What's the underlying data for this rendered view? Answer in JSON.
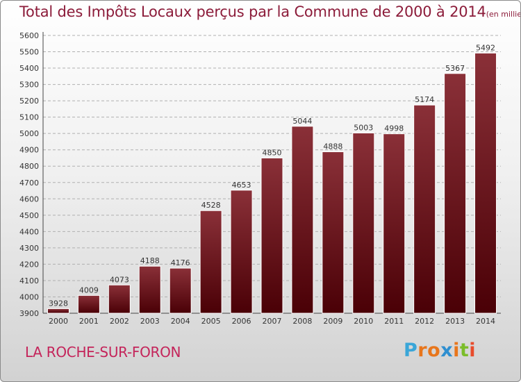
{
  "header": {
    "title": "Total des Impôts Locaux perçus par la Commune de 2000 à 2014",
    "unit": "(en milliers d'€)"
  },
  "footer": {
    "commune": "LA ROCHE-SUR-FORON",
    "logo_letters": [
      "P",
      "r",
      "o",
      "x",
      "i",
      "t",
      "i"
    ],
    "logo_colors": [
      "#3aa6d8",
      "#e8761c",
      "#e8761c",
      "#2f8fd0",
      "#e8761c",
      "#7bbd2a",
      "#e84c2c"
    ]
  },
  "chart_data": {
    "type": "bar",
    "title": "Total des Impôts Locaux perçus par la Commune de 2000 à 2014",
    "xlabel": "",
    "ylabel": "(en milliers d'€)",
    "categories": [
      "2000",
      "2001",
      "2002",
      "2003",
      "2004",
      "2005",
      "2006",
      "2007",
      "2008",
      "2009",
      "2010",
      "2011",
      "2012",
      "2013",
      "2014"
    ],
    "values": [
      3928,
      4009,
      4073,
      4188,
      4176,
      4528,
      4653,
      4850,
      5044,
      4888,
      5003,
      4998,
      5174,
      5367,
      5492
    ],
    "ylim": [
      3900,
      5600
    ],
    "yticks": [
      3900,
      4000,
      4100,
      4200,
      4300,
      4400,
      4500,
      4600,
      4700,
      4800,
      4900,
      5000,
      5100,
      5200,
      5300,
      5400,
      5500,
      5600
    ],
    "grid": true,
    "bar_color_top": "#8a3038",
    "bar_color_bottom": "#4a0006"
  }
}
